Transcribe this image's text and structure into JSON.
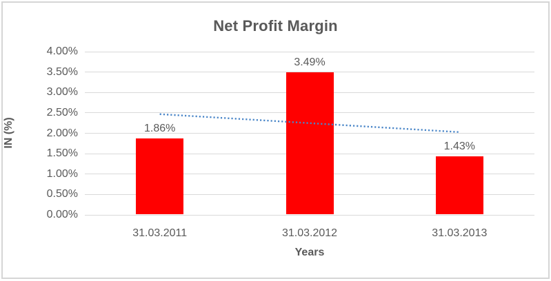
{
  "chart_data": {
    "type": "bar",
    "title": "Net Profit Margin",
    "xlabel": "Years",
    "ylabel": "IN (%)",
    "categories": [
      "31.03.2011",
      "31.03.2012",
      "31.03.2013"
    ],
    "values": [
      1.86,
      3.49,
      1.43
    ],
    "data_labels": [
      "1.86%",
      "3.49%",
      "1.43%"
    ],
    "y_ticks": [
      "4.00%",
      "3.50%",
      "3.00%",
      "2.50%",
      "2.00%",
      "1.50%",
      "1.00%",
      "0.50%",
      "0.00%"
    ],
    "ylim": [
      0,
      4
    ],
    "y_step": 0.5,
    "grid": true,
    "legend": "none",
    "bar_color": "#ff0000",
    "text_color": "#595959",
    "gridline_color": "#d9d9d9",
    "trendline": {
      "type": "linear",
      "style": "dotted",
      "color": "#4a86c8",
      "start_value": 2.46,
      "end_value": 2.02
    }
  }
}
